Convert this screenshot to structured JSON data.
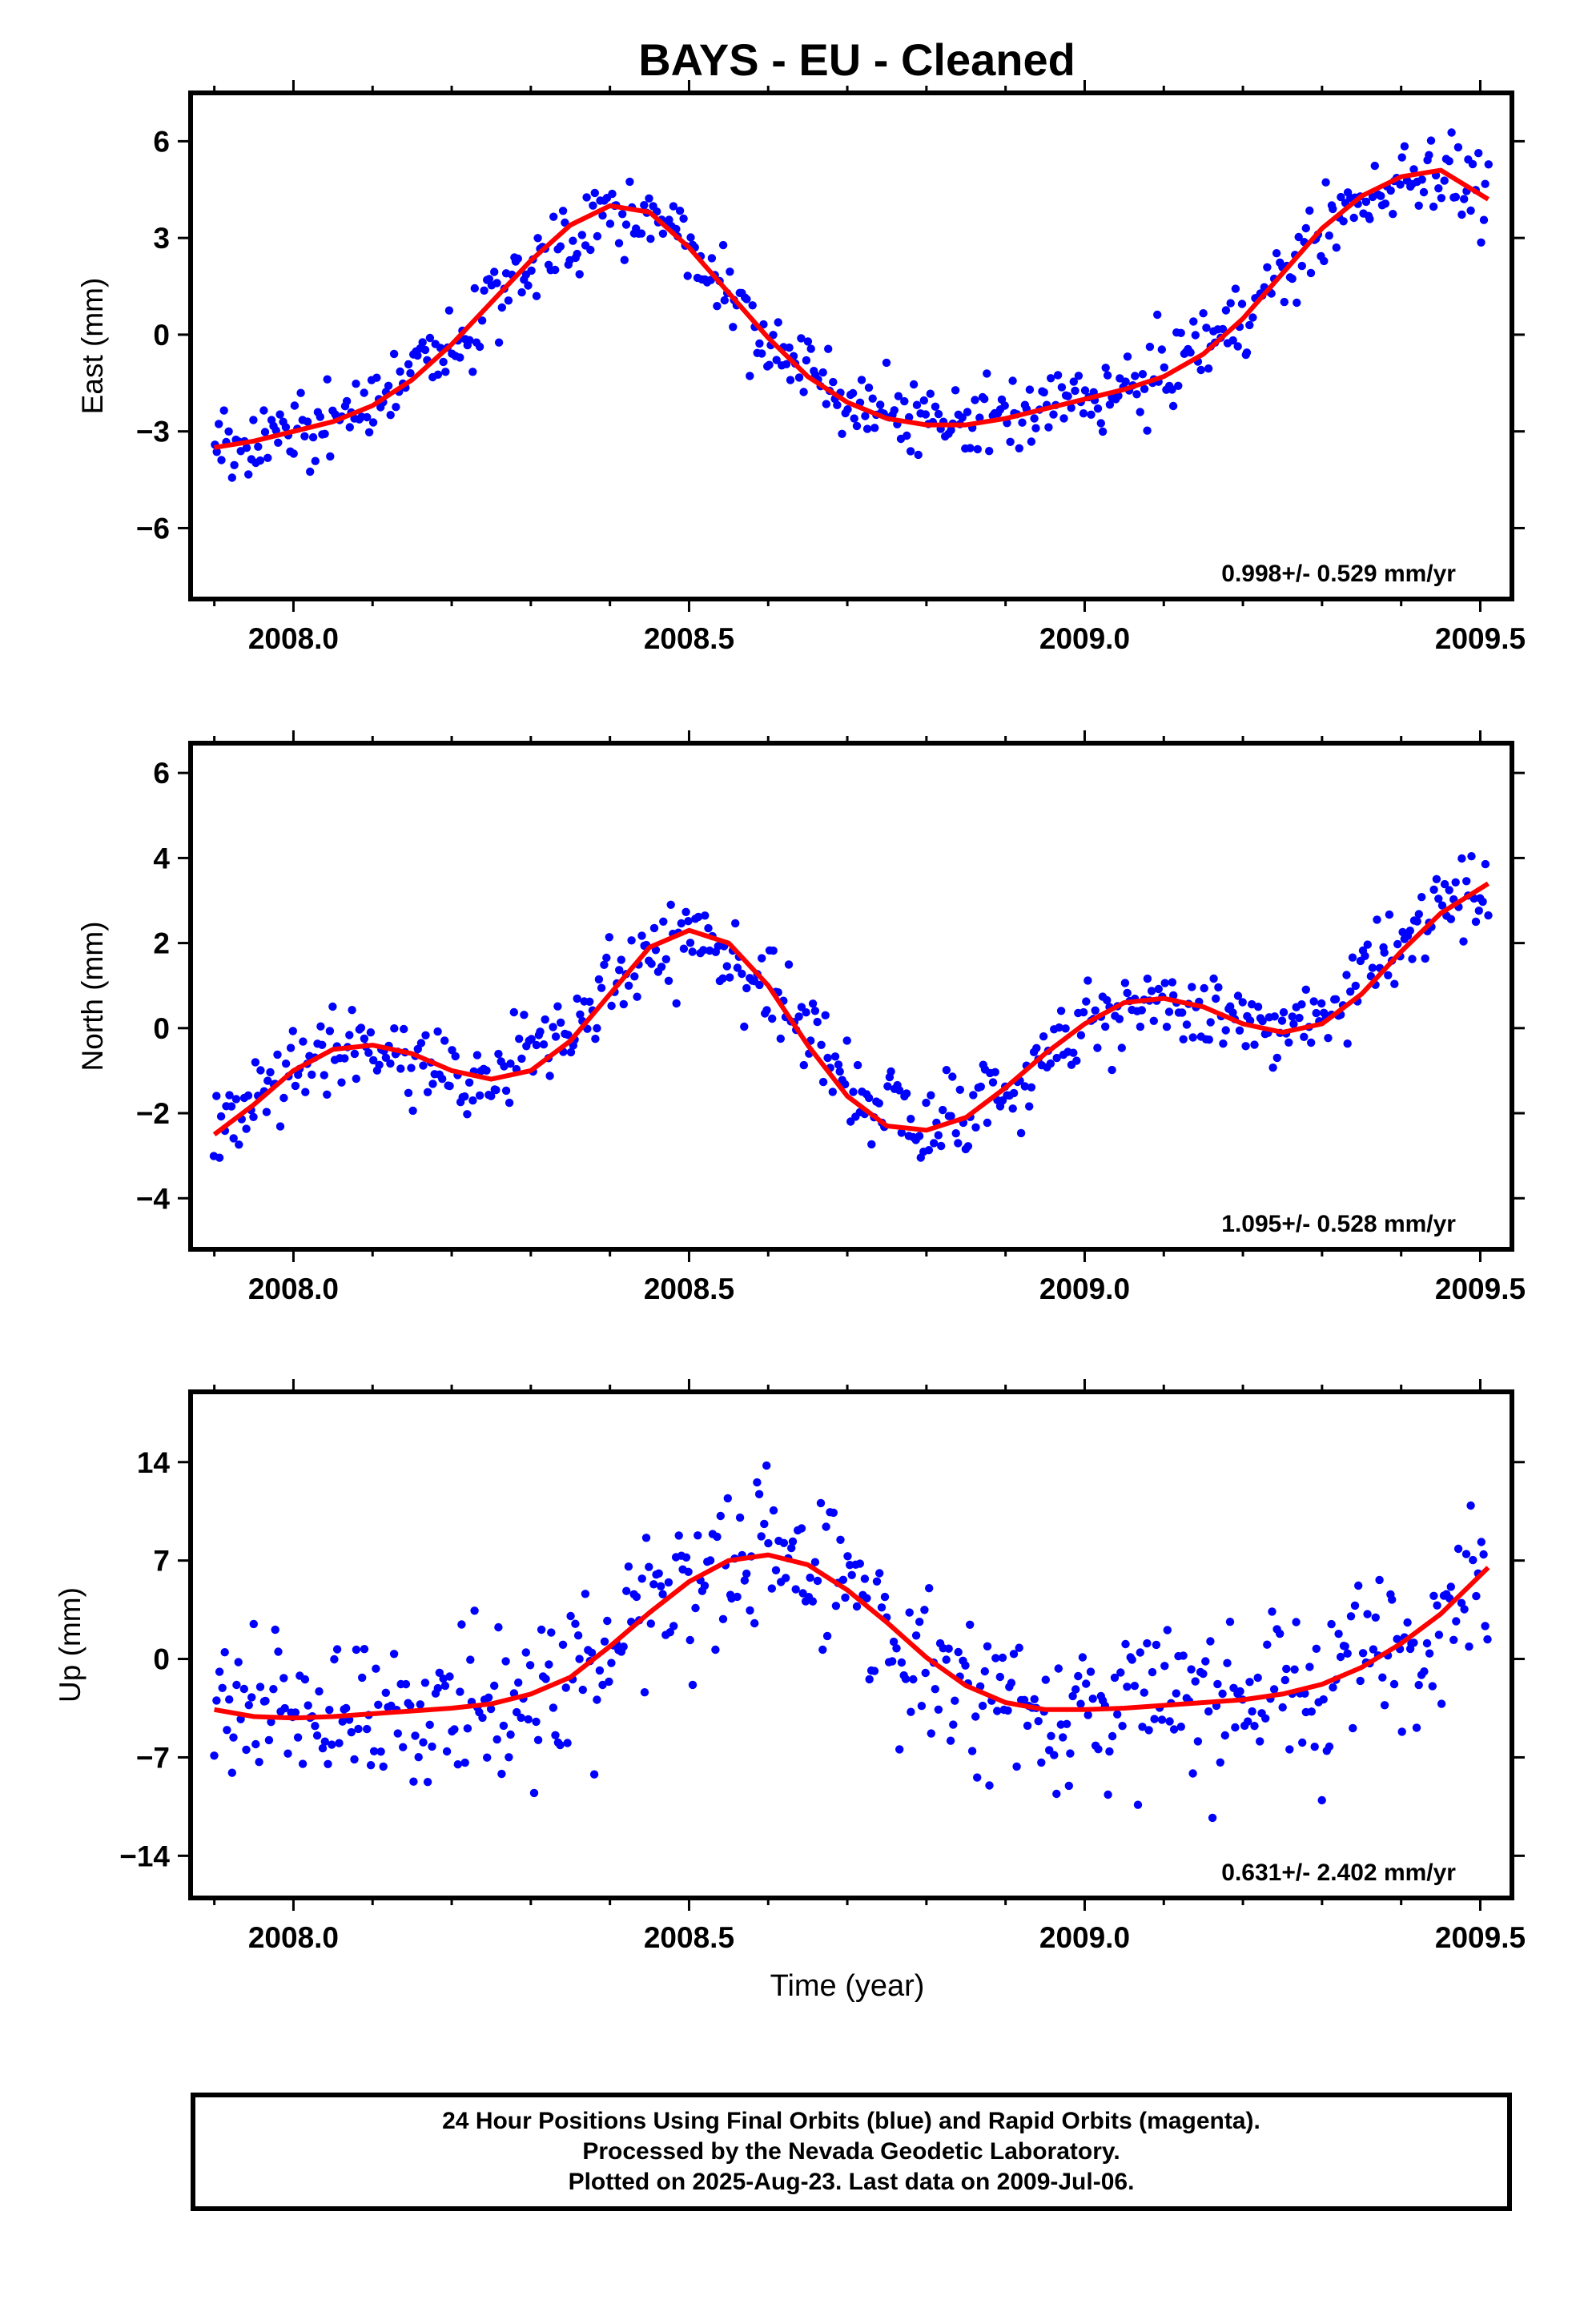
{
  "chart_data": [
    {
      "type": "scatter",
      "title": "BAYS  - EU - Cleaned",
      "xlabel": "",
      "ylabel": "East (mm)",
      "xlim": [
        2007.87,
        2009.54
      ],
      "ylim": [
        -8.2,
        7.5
      ],
      "xticks": [
        2008.0,
        2008.5,
        2009.0,
        2009.5
      ],
      "xtick_labels": [
        "2008.0",
        "2008.5",
        "2009.0",
        "2009.5"
      ],
      "yticks": [
        -6,
        -3,
        0,
        3,
        6
      ],
      "ytick_labels": [
        "−6",
        "−3",
        "0",
        "3",
        "6"
      ],
      "annotation": "0.998+/- 0.529 mm/yr",
      "series": [
        {
          "kind": "points",
          "color": "#0000ff",
          "approx_trend_x": [
            2007.9,
            2008.0,
            2008.1,
            2008.2,
            2008.3,
            2008.4,
            2008.45,
            2008.5,
            2008.6,
            2008.7,
            2008.8,
            2008.9,
            2009.0,
            2009.1,
            2009.2,
            2009.3,
            2009.4,
            2009.45,
            2009.51
          ],
          "approx_trend_y": [
            -3.5,
            -3.0,
            -2.2,
            -0.3,
            2.2,
            3.9,
            3.8,
            2.6,
            -0.2,
            -2.0,
            -2.8,
            -2.6,
            -2.0,
            -1.3,
            0.5,
            3.2,
            4.9,
            5.1,
            4.2
          ],
          "noise": 1.05,
          "count": 520
        },
        {
          "kind": "fit",
          "color": "#ff0000",
          "x": [
            2007.9,
            2007.95,
            2008.0,
            2008.05,
            2008.1,
            2008.15,
            2008.2,
            2008.25,
            2008.3,
            2008.35,
            2008.4,
            2008.45,
            2008.5,
            2008.55,
            2008.6,
            2008.65,
            2008.7,
            2008.75,
            2008.8,
            2008.85,
            2008.9,
            2008.95,
            2009.0,
            2009.05,
            2009.1,
            2009.15,
            2009.2,
            2009.25,
            2009.3,
            2009.35,
            2009.4,
            2009.45,
            2009.51
          ],
          "y": [
            -3.5,
            -3.3,
            -3.0,
            -2.7,
            -2.2,
            -1.4,
            -0.3,
            1.0,
            2.3,
            3.4,
            4.0,
            3.8,
            2.7,
            1.3,
            -0.1,
            -1.3,
            -2.1,
            -2.6,
            -2.8,
            -2.8,
            -2.6,
            -2.3,
            -2.0,
            -1.7,
            -1.3,
            -0.6,
            0.5,
            1.9,
            3.3,
            4.3,
            4.9,
            5.1,
            4.2
          ]
        }
      ]
    },
    {
      "type": "scatter",
      "title": "",
      "xlabel": "",
      "ylabel": "North (mm)",
      "xlim": [
        2007.87,
        2009.54
      ],
      "ylim": [
        -5.2,
        6.7
      ],
      "xticks": [
        2008.0,
        2008.5,
        2009.0,
        2009.5
      ],
      "xtick_labels": [
        "2008.0",
        "2008.5",
        "2009.0",
        "2009.5"
      ],
      "yticks": [
        -4,
        -2,
        0,
        2,
        4,
        6
      ],
      "ytick_labels": [
        "−4",
        "−2",
        "0",
        "2",
        "4",
        "6"
      ],
      "annotation": "1.095+/- 0.528 mm/yr",
      "series": [
        {
          "kind": "points",
          "color": "#0000ff",
          "approx_trend_x": [
            2007.9,
            2008.0,
            2008.07,
            2008.15,
            2008.23,
            2008.3,
            2008.4,
            2008.5,
            2008.6,
            2008.7,
            2008.8,
            2008.9,
            2009.0,
            2009.08,
            2009.15,
            2009.23,
            2009.3,
            2009.4,
            2009.51
          ],
          "approx_trend_y": [
            -2.5,
            -0.9,
            -0.4,
            -0.8,
            -1.2,
            -0.6,
            1.0,
            2.3,
            1.2,
            -1.3,
            -2.4,
            -1.6,
            0.0,
            0.7,
            0.4,
            -0.1,
            0.4,
            2.0,
            3.4
          ],
          "noise": 0.9,
          "count": 520
        },
        {
          "kind": "fit",
          "color": "#ff0000",
          "x": [
            2007.9,
            2007.95,
            2008.0,
            2008.05,
            2008.1,
            2008.15,
            2008.2,
            2008.25,
            2008.3,
            2008.35,
            2008.4,
            2008.45,
            2008.5,
            2008.55,
            2008.6,
            2008.65,
            2008.7,
            2008.75,
            2008.8,
            2008.85,
            2008.9,
            2008.95,
            2009.0,
            2009.05,
            2009.1,
            2009.15,
            2009.2,
            2009.25,
            2009.3,
            2009.35,
            2009.4,
            2009.45,
            2009.51
          ],
          "y": [
            -2.5,
            -1.8,
            -1.0,
            -0.5,
            -0.4,
            -0.6,
            -1.0,
            -1.2,
            -1.0,
            -0.3,
            0.8,
            1.9,
            2.3,
            2.0,
            1.0,
            -0.4,
            -1.6,
            -2.3,
            -2.4,
            -2.1,
            -1.4,
            -0.6,
            0.1,
            0.6,
            0.7,
            0.5,
            0.1,
            -0.1,
            0.1,
            0.8,
            1.8,
            2.7,
            3.4
          ]
        }
      ]
    },
    {
      "type": "scatter",
      "title": "",
      "xlabel": "Time (year)",
      "ylabel": "Up (mm)",
      "xlim": [
        2007.87,
        2009.54
      ],
      "ylim": [
        -17,
        19
      ],
      "xticks": [
        2008.0,
        2008.5,
        2009.0,
        2009.5
      ],
      "xtick_labels": [
        "2008.0",
        "2008.5",
        "2009.0",
        "2009.5"
      ],
      "yticks": [
        -14,
        -7,
        0,
        7,
        14
      ],
      "ytick_labels": [
        "−14",
        "−7",
        "0",
        "7",
        "14"
      ],
      "annotation": "0.631+/- 2.402 mm/yr",
      "series": [
        {
          "kind": "points",
          "color": "#0000ff",
          "approx_trend_x": [
            2007.9,
            2008.0,
            2008.1,
            2008.2,
            2008.3,
            2008.4,
            2008.5,
            2008.6,
            2008.7,
            2008.8,
            2008.9,
            2009.0,
            2009.1,
            2009.2,
            2009.3,
            2009.4,
            2009.51
          ],
          "approx_trend_y": [
            -3.6,
            -4.2,
            -4.0,
            -3.6,
            -2.5,
            1.2,
            5.5,
            7.4,
            5.0,
            0.0,
            -3.2,
            -3.6,
            -3.3,
            -2.8,
            -1.6,
            1.2,
            6.5
          ],
          "noise": 5.2,
          "count": 520
        },
        {
          "kind": "fit",
          "color": "#ff0000",
          "x": [
            2007.9,
            2007.95,
            2008.0,
            2008.05,
            2008.1,
            2008.15,
            2008.2,
            2008.25,
            2008.3,
            2008.35,
            2008.4,
            2008.45,
            2008.5,
            2008.55,
            2008.6,
            2008.65,
            2008.7,
            2008.75,
            2008.8,
            2008.85,
            2008.9,
            2008.95,
            2009.0,
            2009.05,
            2009.1,
            2009.15,
            2009.2,
            2009.25,
            2009.3,
            2009.35,
            2009.4,
            2009.45,
            2009.51
          ],
          "y": [
            -3.6,
            -4.1,
            -4.2,
            -4.1,
            -3.9,
            -3.7,
            -3.5,
            -3.2,
            -2.5,
            -1.3,
            0.9,
            3.3,
            5.5,
            7.0,
            7.4,
            6.7,
            4.9,
            2.6,
            0.1,
            -1.9,
            -3.1,
            -3.6,
            -3.6,
            -3.5,
            -3.3,
            -3.1,
            -2.9,
            -2.5,
            -1.8,
            -0.6,
            1.1,
            3.2,
            6.5
          ]
        }
      ]
    }
  ],
  "footer": {
    "line1": "24 Hour Positions Using Final Orbits (blue) and Rapid Orbits (magenta).",
    "line2": "Processed by the Nevada Geodetic Laboratory.",
    "line3": "Plotted on 2025-Aug-23. Last data on 2009-Jul-06."
  }
}
